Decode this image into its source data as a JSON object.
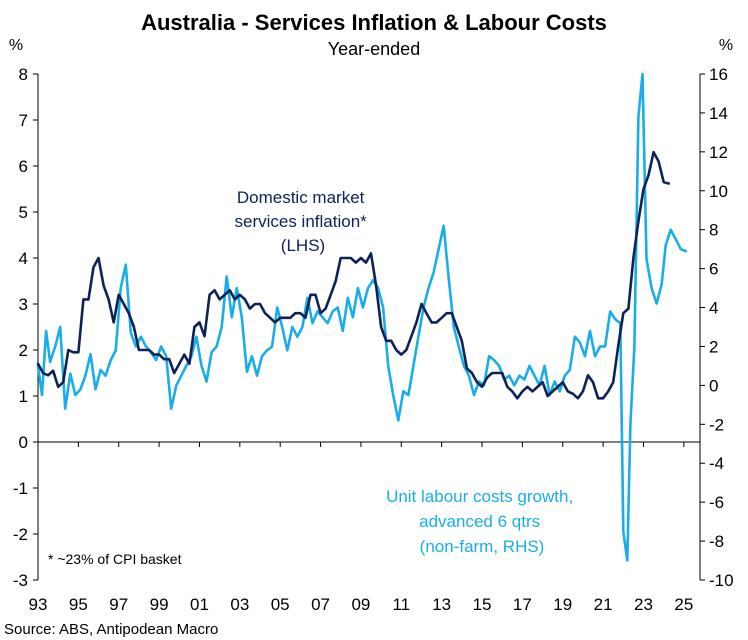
{
  "chart_data": {
    "type": "line",
    "title": "Australia - Services Inflation & Labour Costs",
    "subtitle": "Year-ended",
    "left_unit": "%",
    "right_unit": "%",
    "source": "Source: ABS, Antipodean Macro",
    "footnote": "* ~23% of CPI basket",
    "colors": {
      "domestic": "#0c2258",
      "ulc": "#19aee8",
      "axis": "#000000",
      "text": "#000000"
    },
    "left_axis": {
      "min": -3,
      "max": 8,
      "ticks": [
        -3,
        -2,
        -1,
        0,
        1,
        2,
        3,
        4,
        5,
        6,
        7,
        8
      ]
    },
    "right_axis": {
      "min": -10,
      "max": 16,
      "ticks": [
        -10,
        -8,
        -6,
        -4,
        -2,
        0,
        2,
        4,
        6,
        8,
        10,
        12,
        14,
        16
      ]
    },
    "x_axis": {
      "min": 1993,
      "max": 2025.8,
      "ticks": [
        1993,
        1995,
        1997,
        1999,
        2001,
        2003,
        2005,
        2007,
        2009,
        2011,
        2013,
        2015,
        2017,
        2019,
        2021,
        2023,
        2025
      ],
      "tick_labels": [
        "93",
        "95",
        "97",
        "99",
        "01",
        "03",
        "05",
        "07",
        "09",
        "11",
        "13",
        "15",
        "17",
        "19",
        "21",
        "23",
        "25"
      ]
    },
    "series": [
      {
        "name": "Domestic market services inflation* (LHS)",
        "label_lines": [
          "Domestic market",
          "services inflation*",
          "(LHS)"
        ],
        "axis": "left",
        "points": [
          [
            1993.0,
            1.7
          ],
          [
            1993.25,
            1.5
          ],
          [
            1993.5,
            1.45
          ],
          [
            1993.75,
            1.55
          ],
          [
            1994.0,
            1.2
          ],
          [
            1994.25,
            1.3
          ],
          [
            1994.5,
            2.0
          ],
          [
            1994.75,
            1.95
          ],
          [
            1995.0,
            1.95
          ],
          [
            1995.25,
            3.1
          ],
          [
            1995.5,
            3.1
          ],
          [
            1995.75,
            3.8
          ],
          [
            1996.0,
            4.0
          ],
          [
            1996.25,
            3.4
          ],
          [
            1996.5,
            3.1
          ],
          [
            1996.75,
            2.6
          ],
          [
            1997.0,
            3.2
          ],
          [
            1997.25,
            3.0
          ],
          [
            1997.5,
            2.8
          ],
          [
            1997.75,
            2.5
          ],
          [
            1998.0,
            2.0
          ],
          [
            1998.25,
            2.0
          ],
          [
            1998.5,
            2.0
          ],
          [
            1998.75,
            1.9
          ],
          [
            1999.0,
            1.9
          ],
          [
            1999.25,
            1.8
          ],
          [
            1999.5,
            1.8
          ],
          [
            1999.75,
            1.5
          ],
          [
            2000.0,
            1.7
          ],
          [
            2000.25,
            1.9
          ],
          [
            2000.5,
            1.7
          ],
          [
            2000.75,
            2.5
          ],
          [
            2001.0,
            2.6
          ],
          [
            2001.25,
            2.3
          ],
          [
            2001.5,
            3.2
          ],
          [
            2001.75,
            3.3
          ],
          [
            2002.0,
            3.1
          ],
          [
            2002.25,
            3.2
          ],
          [
            2002.5,
            3.3
          ],
          [
            2002.75,
            3.1
          ],
          [
            2003.0,
            3.2
          ],
          [
            2003.25,
            3.1
          ],
          [
            2003.5,
            2.9
          ],
          [
            2003.75,
            3.0
          ],
          [
            2004.0,
            3.0
          ],
          [
            2004.25,
            2.8
          ],
          [
            2004.5,
            2.7
          ],
          [
            2004.75,
            2.6
          ],
          [
            2005.0,
            2.7
          ],
          [
            2005.25,
            2.7
          ],
          [
            2005.5,
            2.7
          ],
          [
            2005.75,
            2.8
          ],
          [
            2006.0,
            2.8
          ],
          [
            2006.25,
            2.7
          ],
          [
            2006.5,
            3.2
          ],
          [
            2006.75,
            3.2
          ],
          [
            2007.0,
            2.8
          ],
          [
            2007.25,
            2.9
          ],
          [
            2007.5,
            3.2
          ],
          [
            2007.75,
            3.5
          ],
          [
            2008.0,
            4.0
          ],
          [
            2008.25,
            4.0
          ],
          [
            2008.5,
            4.0
          ],
          [
            2008.75,
            3.9
          ],
          [
            2009.0,
            4.0
          ],
          [
            2009.25,
            3.9
          ],
          [
            2009.5,
            4.1
          ],
          [
            2009.75,
            3.4
          ],
          [
            2010.0,
            2.5
          ],
          [
            2010.25,
            2.2
          ],
          [
            2010.5,
            2.2
          ],
          [
            2010.75,
            2.0
          ],
          [
            2011.0,
            1.9
          ],
          [
            2011.25,
            2.0
          ],
          [
            2011.5,
            2.3
          ],
          [
            2011.75,
            2.6
          ],
          [
            2012.0,
            3.0
          ],
          [
            2012.25,
            2.8
          ],
          [
            2012.5,
            2.6
          ],
          [
            2012.75,
            2.6
          ],
          [
            2013.0,
            2.7
          ],
          [
            2013.25,
            2.8
          ],
          [
            2013.5,
            2.8
          ],
          [
            2013.75,
            2.5
          ],
          [
            2014.0,
            2.2
          ],
          [
            2014.25,
            1.6
          ],
          [
            2014.5,
            1.5
          ],
          [
            2014.75,
            1.3
          ],
          [
            2015.0,
            1.2
          ],
          [
            2015.25,
            1.4
          ],
          [
            2015.5,
            1.5
          ],
          [
            2015.75,
            1.5
          ],
          [
            2016.0,
            1.5
          ],
          [
            2016.25,
            1.2
          ],
          [
            2016.5,
            1.1
          ],
          [
            2016.75,
            0.95
          ],
          [
            2017.0,
            1.1
          ],
          [
            2017.25,
            1.2
          ],
          [
            2017.5,
            1.1
          ],
          [
            2017.75,
            1.2
          ],
          [
            2018.0,
            1.3
          ],
          [
            2018.25,
            1.0
          ],
          [
            2018.5,
            1.1
          ],
          [
            2018.75,
            1.2
          ],
          [
            2019.0,
            1.3
          ],
          [
            2019.25,
            1.1
          ],
          [
            2019.5,
            1.05
          ],
          [
            2019.75,
            0.95
          ],
          [
            2020.0,
            1.1
          ],
          [
            2020.25,
            1.45
          ],
          [
            2020.5,
            1.3
          ],
          [
            2020.75,
            0.95
          ],
          [
            2021.0,
            0.95
          ],
          [
            2021.25,
            1.1
          ],
          [
            2021.5,
            1.3
          ],
          [
            2021.75,
            2.1
          ],
          [
            2022.0,
            2.8
          ],
          [
            2022.25,
            2.9
          ],
          [
            2022.5,
            4.0
          ],
          [
            2022.75,
            4.8
          ],
          [
            2023.0,
            5.5
          ],
          [
            2023.25,
            5.8
          ],
          [
            2023.5,
            6.3
          ],
          [
            2023.75,
            6.1
          ],
          [
            2024.0,
            5.65
          ],
          [
            2024.25,
            5.62
          ]
        ]
      },
      {
        "name": "Unit labour costs growth, advanced 6 qtrs (non-farm, RHS)",
        "label_lines": [
          "Unit labour costs growth,",
          "advanced 6 qtrs",
          "(non-farm, RHS)"
        ],
        "axis": "right",
        "points": [
          [
            1993.0,
            1.0
          ],
          [
            1993.2,
            -0.5
          ],
          [
            1993.4,
            2.8
          ],
          [
            1993.6,
            1.2
          ],
          [
            1993.85,
            2.0
          ],
          [
            1994.1,
            3.0
          ],
          [
            1994.35,
            -1.2
          ],
          [
            1994.6,
            0.6
          ],
          [
            1994.85,
            -0.5
          ],
          [
            1995.1,
            -0.2
          ],
          [
            1995.35,
            0.5
          ],
          [
            1995.6,
            1.6
          ],
          [
            1995.85,
            -0.2
          ],
          [
            1996.1,
            0.8
          ],
          [
            1996.35,
            0.5
          ],
          [
            1996.6,
            1.3
          ],
          [
            1996.85,
            1.8
          ],
          [
            1997.1,
            5.0
          ],
          [
            1997.35,
            6.2
          ],
          [
            1997.6,
            2.7
          ],
          [
            1997.85,
            2.0
          ],
          [
            1998.1,
            2.5
          ],
          [
            1998.35,
            2.0
          ],
          [
            1998.6,
            1.7
          ],
          [
            1998.85,
            1.3
          ],
          [
            1999.1,
            2.0
          ],
          [
            1999.35,
            1.5
          ],
          [
            1999.6,
            -1.2
          ],
          [
            1999.85,
            0.0
          ],
          [
            2000.1,
            0.5
          ],
          [
            2000.35,
            1.0
          ],
          [
            2000.6,
            1.5
          ],
          [
            2000.85,
            2.5
          ],
          [
            2001.1,
            1.0
          ],
          [
            2001.35,
            0.2
          ],
          [
            2001.6,
            1.7
          ],
          [
            2001.85,
            2.0
          ],
          [
            2002.1,
            3.0
          ],
          [
            2002.35,
            5.6
          ],
          [
            2002.6,
            3.5
          ],
          [
            2002.85,
            5.0
          ],
          [
            2003.1,
            3.5
          ],
          [
            2003.35,
            0.7
          ],
          [
            2003.6,
            1.5
          ],
          [
            2003.85,
            0.5
          ],
          [
            2004.1,
            1.5
          ],
          [
            2004.35,
            1.8
          ],
          [
            2004.6,
            2.0
          ],
          [
            2004.85,
            4.0
          ],
          [
            2005.1,
            3.0
          ],
          [
            2005.35,
            1.8
          ],
          [
            2005.6,
            3.0
          ],
          [
            2005.85,
            2.5
          ],
          [
            2006.1,
            3.0
          ],
          [
            2006.35,
            4.5
          ],
          [
            2006.6,
            3.2
          ],
          [
            2006.85,
            3.8
          ],
          [
            2007.1,
            3.5
          ],
          [
            2007.35,
            3.2
          ],
          [
            2007.6,
            3.8
          ],
          [
            2007.85,
            4.0
          ],
          [
            2008.1,
            2.8
          ],
          [
            2008.35,
            4.5
          ],
          [
            2008.6,
            3.5
          ],
          [
            2008.85,
            5.0
          ],
          [
            2009.1,
            4.0
          ],
          [
            2009.35,
            5.0
          ],
          [
            2009.6,
            5.4
          ],
          [
            2009.85,
            5.0
          ],
          [
            2010.1,
            4.0
          ],
          [
            2010.35,
            1.0
          ],
          [
            2010.6,
            -0.5
          ],
          [
            2010.85,
            -1.8
          ],
          [
            2011.1,
            -0.3
          ],
          [
            2011.35,
            -0.5
          ],
          [
            2011.6,
            1.0
          ],
          [
            2011.85,
            2.5
          ],
          [
            2012.1,
            4.0
          ],
          [
            2012.35,
            5.0
          ],
          [
            2012.6,
            5.8
          ],
          [
            2012.85,
            7.0
          ],
          [
            2013.1,
            8.2
          ],
          [
            2013.35,
            5.5
          ],
          [
            2013.6,
            3.0
          ],
          [
            2013.85,
            2.0
          ],
          [
            2014.1,
            1.0
          ],
          [
            2014.35,
            0.5
          ],
          [
            2014.6,
            -0.5
          ],
          [
            2014.85,
            0.2
          ],
          [
            2015.1,
            0.0
          ],
          [
            2015.35,
            1.5
          ],
          [
            2015.6,
            1.3
          ],
          [
            2015.85,
            1.0
          ],
          [
            2016.1,
            0.3
          ],
          [
            2016.35,
            0.5
          ],
          [
            2016.6,
            0.0
          ],
          [
            2016.85,
            0.5
          ],
          [
            2017.1,
            0.3
          ],
          [
            2017.35,
            1.0
          ],
          [
            2017.6,
            0.5
          ],
          [
            2017.85,
            0.0
          ],
          [
            2018.1,
            1.0
          ],
          [
            2018.35,
            -0.5
          ],
          [
            2018.6,
            0.2
          ],
          [
            2018.85,
            -0.3
          ],
          [
            2019.1,
            0.5
          ],
          [
            2019.35,
            0.8
          ],
          [
            2019.6,
            2.5
          ],
          [
            2019.85,
            2.2
          ],
          [
            2020.1,
            1.5
          ],
          [
            2020.35,
            2.8
          ],
          [
            2020.6,
            1.5
          ],
          [
            2020.85,
            2.0
          ],
          [
            2021.1,
            2.0
          ],
          [
            2021.35,
            3.8
          ],
          [
            2021.6,
            3.4
          ],
          [
            2021.85,
            3.2
          ],
          [
            2022.0,
            -7.5
          ],
          [
            2022.2,
            -9.0
          ],
          [
            2022.35,
            -2.0
          ],
          [
            2022.55,
            2.0
          ],
          [
            2022.75,
            13.8
          ],
          [
            2022.95,
            16.0
          ],
          [
            2023.15,
            6.5
          ],
          [
            2023.4,
            5.0
          ],
          [
            2023.65,
            4.2
          ],
          [
            2023.9,
            5.2
          ],
          [
            2024.1,
            7.2
          ],
          [
            2024.35,
            8.0
          ],
          [
            2024.6,
            7.5
          ],
          [
            2024.85,
            7.0
          ],
          [
            2025.1,
            6.9
          ]
        ]
      }
    ]
  }
}
